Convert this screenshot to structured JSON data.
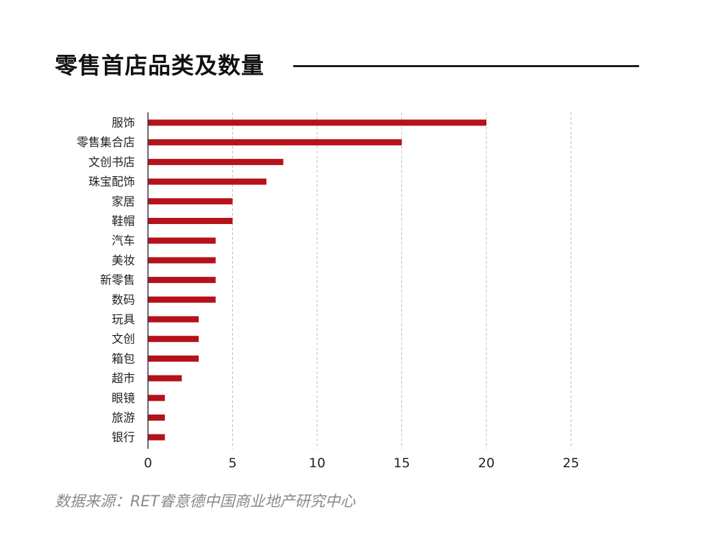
{
  "page": {
    "title": "零售首店品类及数量",
    "source": "数据来源：RET睿意德中国商业地产研究中心"
  },
  "chart_data": {
    "type": "bar",
    "orientation": "horizontal",
    "categories": [
      "服饰",
      "零售集合店",
      "文创书店",
      "珠宝配饰",
      "家居",
      "鞋帽",
      "汽车",
      "美妆",
      "新零售",
      "数码",
      "玩具",
      "文创",
      "箱包",
      "超市",
      "眼镜",
      "旅游",
      "银行"
    ],
    "values": [
      20,
      15,
      8,
      7,
      5,
      5,
      4,
      4,
      4,
      4,
      3,
      3,
      3,
      2,
      1,
      1,
      1
    ],
    "xlim": [
      0,
      25
    ],
    "xticks": [
      0,
      5,
      10,
      15,
      20,
      25
    ],
    "grid": "vertical dashed",
    "bar_color": "#b5121b",
    "legend": "none"
  }
}
